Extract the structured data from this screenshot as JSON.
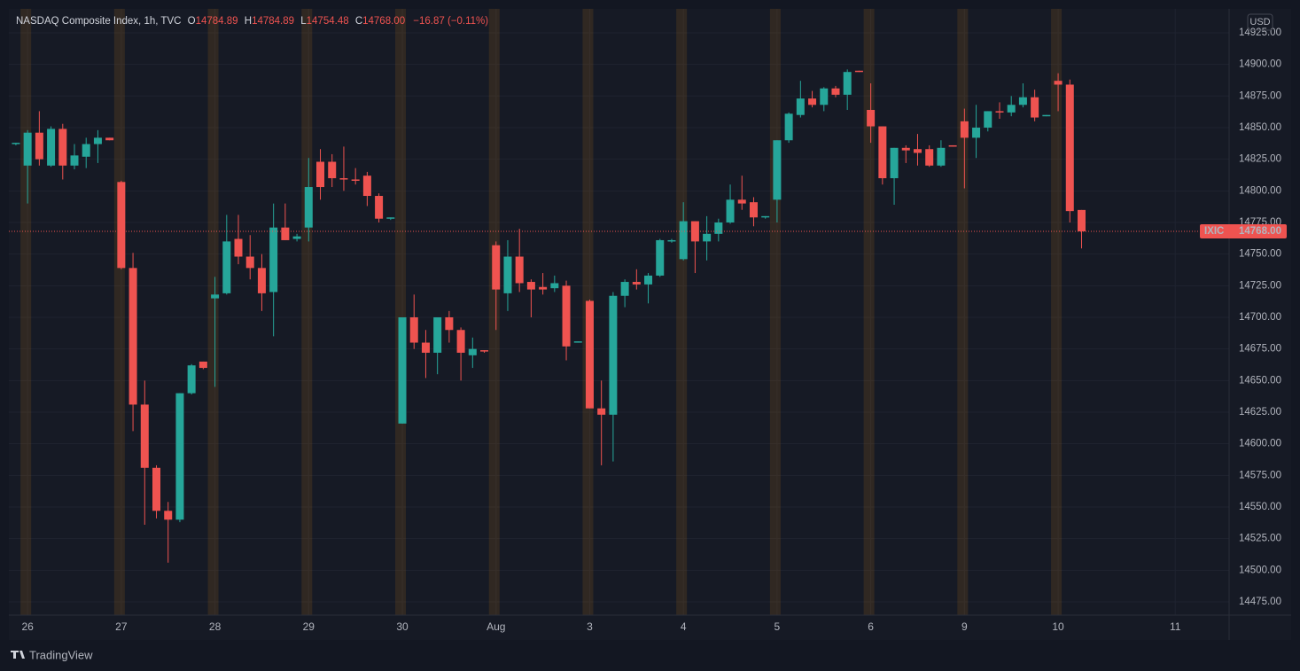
{
  "header": {
    "symbol": "NASDAQ Composite Index, 1h, TVC",
    "open": "14784.89",
    "high": "14784.89",
    "low": "14754.48",
    "close": "14768.00",
    "change": "−16.87 (−0.11%)"
  },
  "currency": "USD",
  "brand": "TradingView",
  "chart_data": {
    "type": "candlestick",
    "up_color": "#26a69a",
    "down_color": "#ef5350",
    "last_price": {
      "value": 14768,
      "label": "14768.00",
      "symbol": "IXIC"
    },
    "x": [
      -1,
      0,
      1,
      2,
      3,
      4,
      5,
      6,
      7,
      8,
      9,
      10,
      11,
      12,
      13,
      14,
      15,
      16,
      17,
      18,
      19,
      20,
      21,
      22,
      23,
      24,
      25,
      26,
      27,
      28,
      29,
      30,
      31,
      32,
      33,
      34,
      35,
      36,
      37,
      38,
      39,
      40,
      41,
      42,
      43,
      44,
      45,
      46,
      47,
      48,
      49,
      50,
      51,
      52,
      53,
      54,
      55,
      56,
      57,
      58,
      59,
      60,
      61,
      62,
      63,
      64,
      65,
      66,
      67,
      68,
      69,
      70,
      71,
      72,
      73,
      74,
      75,
      76,
      77,
      78,
      79,
      80,
      81,
      82,
      83,
      84,
      85,
      86,
      87,
      88,
      89,
      90
    ],
    "open": [
      14837,
      14820,
      14846,
      14820,
      14849,
      14820,
      14827,
      14837,
      14842,
      14807,
      14739,
      14631,
      14581,
      14547,
      14540,
      14640,
      14665,
      14715,
      14719,
      14762,
      14748,
      14739,
      14720,
      14771,
      14762,
      14771,
      14823,
      14823,
      14810,
      14809,
      14812,
      14796,
      14778,
      14616,
      14700,
      14680,
      14672,
      14700,
      14690,
      14670,
      14674,
      14757,
      14719,
      14748,
      14728,
      14724,
      14723,
      14725,
      14680,
      14713,
      14628,
      14623,
      14717,
      14728,
      14726,
      14733,
      14760,
      14746,
      14776,
      14760,
      14766,
      14775,
      14793,
      14791,
      14779,
      14793,
      14840,
      14860,
      14873,
      14868,
      14881,
      14876,
      14895,
      14864,
      14851,
      14810,
      14834,
      14833,
      14833,
      14820,
      14836,
      14855,
      14842,
      14850,
      14863,
      14862,
      14868,
      14874,
      14859,
      14887,
      14884,
      14784.89
    ],
    "high": [
      14838,
      14848,
      14863,
      14851,
      14853,
      14837,
      14842,
      14848,
      14842,
      14808,
      14751,
      14650,
      14583,
      14554,
      14640,
      14663,
      14665,
      14732,
      14781,
      14781,
      14765,
      14750,
      14790,
      14790,
      14766,
      14826,
      14833,
      14829,
      14835,
      14818,
      14815,
      14798,
      14779,
      14700,
      14718,
      14690,
      14700,
      14705,
      14692,
      14684,
      14674,
      14760,
      14761,
      14770,
      14730,
      14735,
      14733,
      14729,
      14681,
      14714,
      14650,
      14720,
      14730,
      14738,
      14735,
      14762,
      14762,
      14791,
      14776,
      14780,
      14778,
      14805,
      14812,
      14795,
      14780,
      14840,
      14862,
      14887,
      14879,
      14882,
      14883,
      14896,
      14895,
      14885,
      14851,
      14834,
      14836,
      14845,
      14836,
      14840,
      14836,
      14865,
      14868,
      14863,
      14870,
      14875,
      14885,
      14880,
      14860,
      14893,
      14888,
      14784.89
    ],
    "low": [
      14836,
      14790,
      14820,
      14819,
      14809,
      14817,
      14818,
      14822,
      14840,
      14738,
      14610,
      14536,
      14541,
      14506,
      14538,
      14639,
      14659,
      14645,
      14718,
      14742,
      14730,
      14705,
      14685,
      14761,
      14760,
      14760,
      14793,
      14803,
      14800,
      14805,
      14788,
      14775,
      14777,
      14616,
      14675,
      14652,
      14655,
      14680,
      14650,
      14660,
      14672,
      14690,
      14705,
      14720,
      14700,
      14718,
      14720,
      14666,
      14680,
      14628,
      14583,
      14586,
      14708,
      14722,
      14711,
      14732,
      14759,
      14745,
      14735,
      14745,
      14760,
      14774,
      14785,
      14772,
      14778,
      14775,
      14838,
      14858,
      14866,
      14863,
      14874,
      14864,
      14894,
      14838,
      14805,
      14789,
      14822,
      14820,
      14819,
      14819,
      14835,
      14802,
      14826,
      14847,
      14857,
      14859,
      14866,
      14855,
      14859,
      14863,
      14775,
      14754.48
    ],
    "close": [
      14838,
      14846,
      14825,
      14849,
      14820,
      14828,
      14837,
      14842,
      14840,
      14739,
      14631,
      14581,
      14547,
      14540,
      14640,
      14662,
      14660,
      14718,
      14760,
      14748,
      14739,
      14719,
      14771,
      14761,
      14764,
      14803,
      14803,
      14810,
      14809,
      14808,
      14796,
      14778,
      14779,
      14700,
      14680,
      14672,
      14700,
      14690,
      14672,
      14675,
      14673,
      14722,
      14748,
      14727,
      14722,
      14722,
      14727,
      14677,
      14681,
      14628,
      14623,
      14717,
      14728,
      14726,
      14733,
      14761,
      14761,
      14776,
      14760,
      14766,
      14775,
      14793,
      14790,
      14779,
      14780,
      14840,
      14861,
      14873,
      14868,
      14881,
      14876,
      14894,
      14894,
      14851,
      14810,
      14834,
      14832,
      14830,
      14820,
      14834,
      14835,
      14842,
      14850,
      14863,
      14862,
      14868,
      14874,
      14858,
      14860,
      14884,
      14784,
      14768
    ],
    "xlim": [
      -1.6,
      102.6
    ],
    "xticks": [
      {
        "value": 0,
        "label": "26"
      },
      {
        "value": 8,
        "label": "27"
      },
      {
        "value": 16,
        "label": "28"
      },
      {
        "value": 24,
        "label": "29"
      },
      {
        "value": 32,
        "label": "30"
      },
      {
        "value": 40,
        "label": "Aug"
      },
      {
        "value": 48,
        "label": "3"
      },
      {
        "value": 56,
        "label": "4"
      },
      {
        "value": 64,
        "label": "5"
      },
      {
        "value": 72,
        "label": "6"
      },
      {
        "value": 80,
        "label": "9"
      },
      {
        "value": 88,
        "label": "10"
      },
      {
        "value": 98,
        "label": "11"
      }
    ],
    "ylim": [
      14464.5,
      14943.9
    ],
    "yticks": [
      {
        "value": 14475,
        "label": "14475.00"
      },
      {
        "value": 14500,
        "label": "14500.00"
      },
      {
        "value": 14525,
        "label": "14525.00"
      },
      {
        "value": 14550,
        "label": "14550.00"
      },
      {
        "value": 14575,
        "label": "14575.00"
      },
      {
        "value": 14600,
        "label": "14600.00"
      },
      {
        "value": 14625,
        "label": "14625.00"
      },
      {
        "value": 14650,
        "label": "14650.00"
      },
      {
        "value": 14675,
        "label": "14675.00"
      },
      {
        "value": 14700,
        "label": "14700.00"
      },
      {
        "value": 14725,
        "label": "14725.00"
      },
      {
        "value": 14750,
        "label": "14750.00"
      },
      {
        "value": 14775,
        "label": "14775.00"
      },
      {
        "value": 14800,
        "label": "14800.00"
      },
      {
        "value": 14825,
        "label": "14825.00"
      },
      {
        "value": 14850,
        "label": "14850.00"
      },
      {
        "value": 14875,
        "label": "14875.00"
      },
      {
        "value": 14900,
        "label": "14900.00"
      },
      {
        "value": 14925,
        "label": "14925.00"
      }
    ],
    "grid": true
  }
}
